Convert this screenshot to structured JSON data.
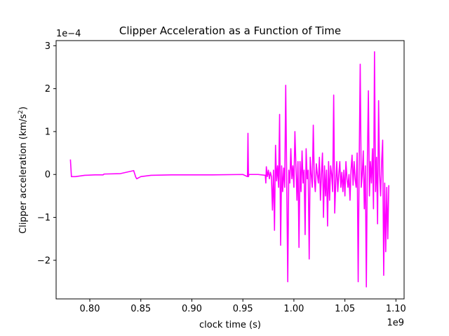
{
  "chart_data": {
    "type": "line",
    "title": "Clipper Acceleration as a Function of Time",
    "xlabel": "clock time (s)",
    "ylabel_main": "Clipper acceleration (km/s",
    "ylabel_sup": "2",
    "ylabel_end": ")",
    "x_offset_text": "1e9",
    "y_offset_text": "1e−4",
    "xlim": [
      0.767,
      1.108
    ],
    "ylim": [
      -2.9,
      3.12
    ],
    "xticks": [
      0.8,
      0.85,
      0.9,
      0.95,
      1.0,
      1.05,
      1.1
    ],
    "xtick_labels": [
      "0.80",
      "0.85",
      "0.90",
      "0.95",
      "1.00",
      "1.05",
      "1.10"
    ],
    "yticks": [
      -2,
      -1,
      0,
      1,
      2,
      3
    ],
    "ytick_labels": [
      "−2",
      "−1",
      "0",
      "1",
      "2",
      "3"
    ],
    "grid": false,
    "series": [
      {
        "color": "#ff00ff",
        "x": [
          0.781,
          0.782,
          0.786,
          0.795,
          0.805,
          0.813,
          0.814,
          0.83,
          0.843,
          0.845,
          0.846,
          0.85,
          0.86,
          0.88,
          0.92,
          0.95,
          0.9545,
          0.955,
          0.9555,
          0.956,
          0.965,
          0.972,
          0.9725,
          0.973,
          0.974,
          0.975,
          0.976,
          0.977,
          0.978,
          0.979,
          0.98,
          0.981,
          0.982,
          0.983,
          0.984,
          0.985,
          0.986,
          0.987,
          0.988,
          0.989,
          0.99,
          0.991,
          0.992,
          0.993,
          0.994,
          0.995,
          0.996,
          0.997,
          0.998,
          0.999,
          1.0,
          1.001,
          1.002,
          1.003,
          1.004,
          1.005,
          1.006,
          1.007,
          1.008,
          1.009,
          1.01,
          1.011,
          1.012,
          1.013,
          1.014,
          1.015,
          1.016,
          1.017,
          1.018,
          1.019,
          1.02,
          1.021,
          1.022,
          1.023,
          1.024,
          1.025,
          1.026,
          1.027,
          1.028,
          1.029,
          1.03,
          1.031,
          1.032,
          1.033,
          1.034,
          1.035,
          1.036,
          1.037,
          1.038,
          1.039,
          1.04,
          1.041,
          1.042,
          1.043,
          1.044,
          1.045,
          1.046,
          1.047,
          1.048,
          1.049,
          1.05,
          1.051,
          1.052,
          1.053,
          1.054,
          1.055,
          1.056,
          1.057,
          1.058,
          1.059,
          1.06,
          1.061,
          1.062,
          1.063,
          1.064,
          1.065,
          1.066,
          1.067,
          1.068,
          1.069,
          1.07,
          1.071,
          1.072,
          1.073,
          1.074,
          1.075,
          1.076,
          1.077,
          1.078,
          1.079,
          1.08,
          1.081,
          1.082,
          1.083,
          1.084,
          1.085,
          1.086,
          1.087,
          1.088,
          1.089,
          1.09,
          1.091,
          1.092,
          1.093
        ],
        "y": [
          0.35,
          -0.05,
          -0.05,
          -0.02,
          -0.01,
          -0.01,
          0.01,
          0.02,
          0.09,
          -0.06,
          -0.1,
          -0.05,
          -0.02,
          -0.01,
          -0.01,
          0.0,
          -0.05,
          0.96,
          -0.05,
          0.0,
          0.0,
          -0.02,
          -0.2,
          0.18,
          -0.05,
          0.1,
          -0.1,
          0.05,
          -0.05,
          -0.83,
          0.1,
          -1.3,
          0.68,
          -0.15,
          0.2,
          -0.3,
          1.4,
          -1.65,
          0.2,
          -0.4,
          0.15,
          -0.3,
          2.08,
          -0.2,
          -2.5,
          0.1,
          -0.2,
          0.6,
          -0.1,
          0.2,
          -0.3,
          1.0,
          0.2,
          -0.6,
          0.3,
          -1.7,
          0.3,
          -0.4,
          0.55,
          -0.2,
          0.1,
          -1.4,
          0.6,
          -0.1,
          0.1,
          -1.97,
          0.4,
          0.0,
          -0.3,
          1.15,
          -0.1,
          -0.4,
          0.25,
          0.0,
          -0.2,
          0.4,
          -0.6,
          0.0,
          0.5,
          -1.0,
          0.2,
          -0.5,
          0.1,
          -1.2,
          0.3,
          -0.6,
          0.2,
          0.0,
          -0.4,
          1.85,
          -0.9,
          -0.2,
          0.3,
          -0.4,
          0.0,
          0.3,
          -0.3,
          0.05,
          -0.4,
          0.1,
          -0.5,
          0.3,
          -0.1,
          -0.3,
          0.0,
          -0.6,
          0.1,
          0.45,
          -0.25,
          0.3,
          -0.1,
          -0.3,
          0.5,
          -2.5,
          0.3,
          2.57,
          -0.3,
          0.0,
          0.55,
          -0.8,
          0.2,
          -2.62,
          0.3,
          1.95,
          -0.5,
          0.3,
          -0.2,
          0.6,
          -0.8,
          2.86,
          -0.4,
          0.4,
          -1.15,
          1.72,
          0.0,
          -0.5,
          0.3,
          0.8,
          -2.35,
          -0.2,
          -1.8,
          -0.3,
          -1.5,
          -0.25
        ]
      }
    ]
  }
}
